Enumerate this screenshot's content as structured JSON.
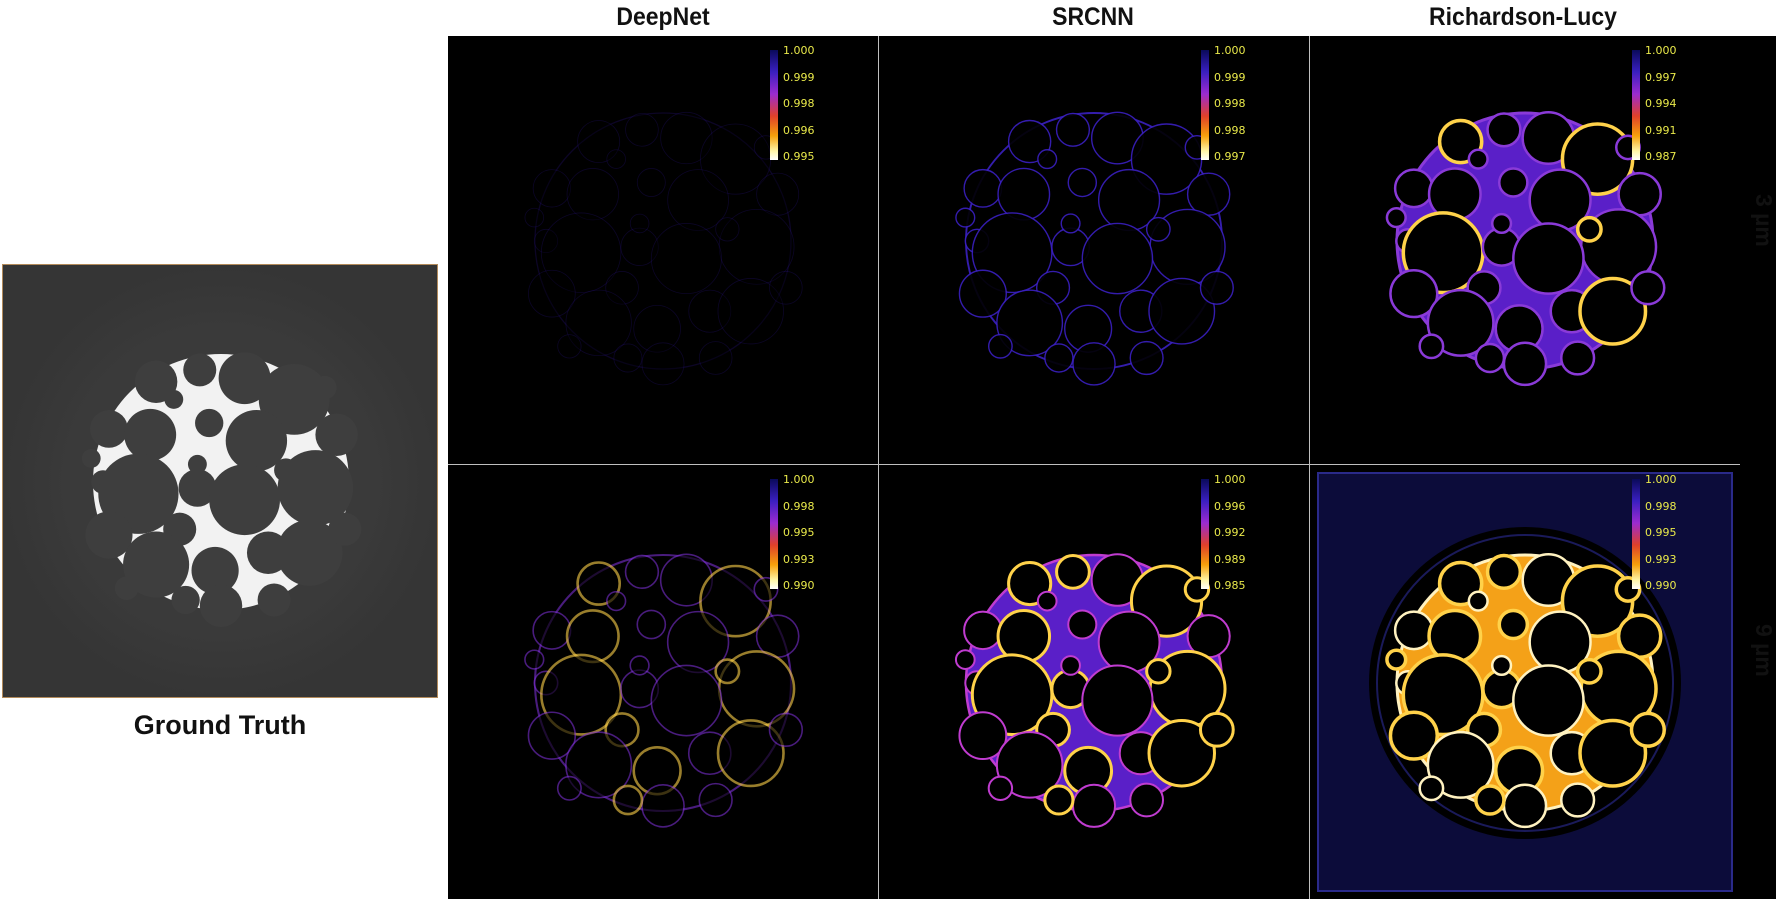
{
  "columns": [
    "DeepNet",
    "SRCNN",
    "Richardson-Lucy"
  ],
  "rows": [
    "3 µm",
    "9 µm"
  ],
  "ground_truth_label": "Ground Truth",
  "colorbars": [
    [
      "1.000",
      "0.999",
      "0.998",
      "0.996",
      "0.995"
    ],
    [
      "1.000",
      "0.999",
      "0.998",
      "0.998",
      "0.997"
    ],
    [
      "1.000",
      "0.997",
      "0.994",
      "0.991",
      "0.987"
    ],
    [
      "1.000",
      "0.998",
      "0.995",
      "0.993",
      "0.990"
    ],
    [
      "1.000",
      "0.996",
      "0.992",
      "0.989",
      "0.985"
    ],
    [
      "1.000",
      "0.998",
      "0.995",
      "0.993",
      "0.990"
    ]
  ],
  "colors": {
    "background": "#ffffff",
    "panel_background": "#000000",
    "ground_truth_background": "#353535",
    "tick_text": "#e9e94a",
    "colormap": [
      "#1a0a6e",
      "#5a1fc8",
      "#b02bd0",
      "#e2442a",
      "#f5a20b",
      "#fff6a8",
      "#ffffff"
    ]
  }
}
